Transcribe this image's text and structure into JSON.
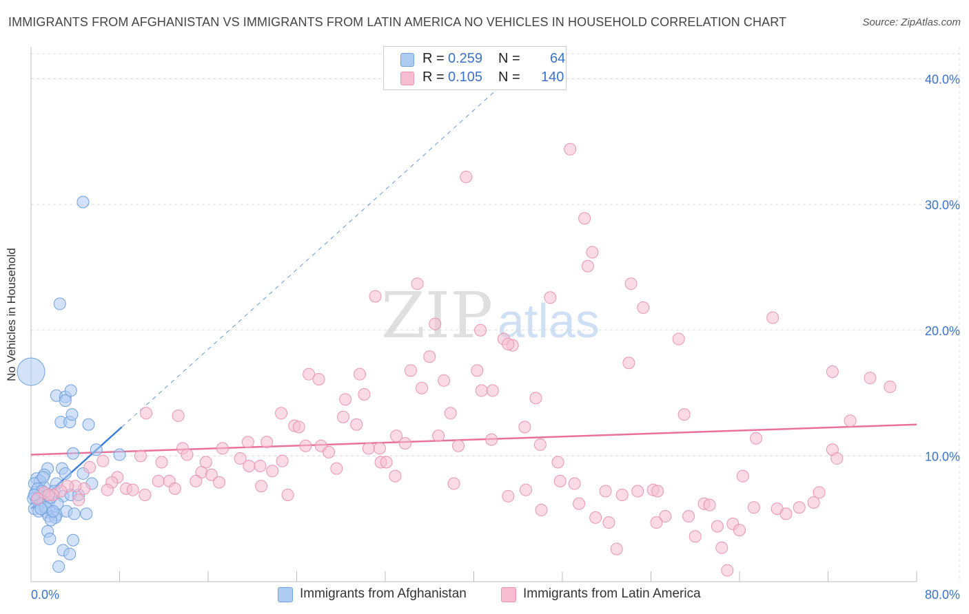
{
  "header": {
    "title": "IMMIGRANTS FROM AFGHANISTAN VS IMMIGRANTS FROM LATIN AMERICA NO VEHICLES IN HOUSEHOLD CORRELATION CHART",
    "source": "Source: ZipAtlas.com"
  },
  "legend_stats": {
    "r_label": "R =",
    "n_label": "N =",
    "rows": [
      {
        "r": "0.259",
        "n": "64"
      },
      {
        "r": "0.105",
        "n": "140"
      }
    ]
  },
  "watermark": {
    "zip": "ZIP",
    "atlas": "atlas"
  },
  "colors": {
    "blue_fill": "#aecbf2",
    "blue_stroke": "#6e9fde",
    "blue_line": "#3b7dd8",
    "pink_fill": "#f6bdd0",
    "pink_stroke": "#e993b1",
    "pink_line": "#e8709a",
    "tick_text": "#3a72c7",
    "grid": "#d9d9d9"
  },
  "chart_data": {
    "type": "scatter",
    "title": "IMMIGRANTS FROM AFGHANISTAN VS IMMIGRANTS FROM LATIN AMERICA NO VEHICLES IN HOUSEHOLD CORRELATION CHART",
    "xlabel": "",
    "ylabel": "No Vehicles in Household",
    "xlim": [
      0,
      80
    ],
    "ylim": [
      0,
      42
    ],
    "x_tick_labels": [
      "0.0%",
      "80.0%"
    ],
    "y_ticks": [
      10,
      20,
      30,
      40
    ],
    "y_tick_labels": [
      "10.0%",
      "20.0%",
      "30.0%",
      "40.0%"
    ],
    "grid": true,
    "legend_position": "top-center",
    "series": [
      {
        "name": "Immigrants from Afghanistan",
        "color": "blue",
        "trend": {
          "x": [
            0,
            8.2
          ],
          "y": [
            5.8,
            12.3
          ],
          "extended_to_x": 43.5
        },
        "points": [
          {
            "x": 0.0,
            "y": 16.7,
            "large": true
          },
          {
            "x": 4.7,
            "y": 30.2
          },
          {
            "x": 2.6,
            "y": 22.1
          },
          {
            "x": 2.3,
            "y": 14.8
          },
          {
            "x": 3.1,
            "y": 14.7
          },
          {
            "x": 3.6,
            "y": 15.2
          },
          {
            "x": 3.1,
            "y": 14.4
          },
          {
            "x": 2.7,
            "y": 12.7
          },
          {
            "x": 3.5,
            "y": 12.7
          },
          {
            "x": 3.7,
            "y": 13.3
          },
          {
            "x": 5.2,
            "y": 12.5
          },
          {
            "x": 3.8,
            "y": 10.2
          },
          {
            "x": 5.9,
            "y": 10.5
          },
          {
            "x": 8.0,
            "y": 10.1
          },
          {
            "x": 1.5,
            "y": 9.0
          },
          {
            "x": 2.8,
            "y": 9.0
          },
          {
            "x": 1.2,
            "y": 8.5
          },
          {
            "x": 3.1,
            "y": 8.6
          },
          {
            "x": 4.7,
            "y": 8.6
          },
          {
            "x": 0.5,
            "y": 8.2
          },
          {
            "x": 0.8,
            "y": 8.0
          },
          {
            "x": 0.3,
            "y": 7.8
          },
          {
            "x": 2.3,
            "y": 7.8
          },
          {
            "x": 5.5,
            "y": 7.8
          },
          {
            "x": 1.2,
            "y": 7.5
          },
          {
            "x": 2.1,
            "y": 7.2
          },
          {
            "x": 0.4,
            "y": 7.1
          },
          {
            "x": 1.0,
            "y": 7.0
          },
          {
            "x": 0.7,
            "y": 6.8
          },
          {
            "x": 1.3,
            "y": 6.8
          },
          {
            "x": 2.9,
            "y": 6.8
          },
          {
            "x": 0.2,
            "y": 6.6
          },
          {
            "x": 0.5,
            "y": 6.5
          },
          {
            "x": 1.1,
            "y": 6.4
          },
          {
            "x": 1.6,
            "y": 6.3
          },
          {
            "x": 0.8,
            "y": 6.2
          },
          {
            "x": 2.4,
            "y": 6.2
          },
          {
            "x": 3.6,
            "y": 6.9
          },
          {
            "x": 4.3,
            "y": 6.9
          },
          {
            "x": 0.3,
            "y": 5.8
          },
          {
            "x": 0.7,
            "y": 5.6
          },
          {
            "x": 1.4,
            "y": 5.5
          },
          {
            "x": 1.9,
            "y": 5.5
          },
          {
            "x": 2.3,
            "y": 5.3
          },
          {
            "x": 1.6,
            "y": 5.2
          },
          {
            "x": 2.2,
            "y": 5.1
          },
          {
            "x": 3.2,
            "y": 5.6
          },
          {
            "x": 3.9,
            "y": 5.4
          },
          {
            "x": 5.0,
            "y": 5.4
          },
          {
            "x": 1.8,
            "y": 4.9
          },
          {
            "x": 1.5,
            "y": 4.0
          },
          {
            "x": 1.7,
            "y": 3.4
          },
          {
            "x": 3.8,
            "y": 3.3
          },
          {
            "x": 2.9,
            "y": 2.5
          },
          {
            "x": 3.5,
            "y": 2.2
          },
          {
            "x": 2.5,
            "y": 1.2
          },
          {
            "x": 0.6,
            "y": 7.4
          },
          {
            "x": 1.0,
            "y": 7.2
          },
          {
            "x": 1.8,
            "y": 6.7
          },
          {
            "x": 0.3,
            "y": 6.9
          },
          {
            "x": 1.3,
            "y": 5.9
          },
          {
            "x": 2.0,
            "y": 5.6
          },
          {
            "x": 0.9,
            "y": 5.8
          },
          {
            "x": 1.1,
            "y": 8.3
          }
        ]
      },
      {
        "name": "Immigrants from Latin America",
        "color": "pink",
        "trend": {
          "x": [
            0,
            80
          ],
          "y": [
            10.1,
            12.5
          ]
        },
        "points": [
          {
            "x": 48.7,
            "y": 34.4
          },
          {
            "x": 39.3,
            "y": 32.2
          },
          {
            "x": 50.0,
            "y": 28.9
          },
          {
            "x": 50.7,
            "y": 26.2
          },
          {
            "x": 50.3,
            "y": 25.1
          },
          {
            "x": 34.9,
            "y": 23.7
          },
          {
            "x": 54.2,
            "y": 23.7
          },
          {
            "x": 31.1,
            "y": 22.7
          },
          {
            "x": 46.9,
            "y": 22.6
          },
          {
            "x": 55.3,
            "y": 21.8
          },
          {
            "x": 67.0,
            "y": 21.0
          },
          {
            "x": 36.5,
            "y": 20.5
          },
          {
            "x": 40.6,
            "y": 20.0
          },
          {
            "x": 42.7,
            "y": 19.3
          },
          {
            "x": 43.5,
            "y": 18.8
          },
          {
            "x": 43.1,
            "y": 18.9
          },
          {
            "x": 58.5,
            "y": 19.3
          },
          {
            "x": 36.0,
            "y": 17.9
          },
          {
            "x": 54.0,
            "y": 17.4
          },
          {
            "x": 34.3,
            "y": 16.8
          },
          {
            "x": 40.3,
            "y": 16.8
          },
          {
            "x": 25.1,
            "y": 16.5
          },
          {
            "x": 29.7,
            "y": 16.5
          },
          {
            "x": 72.4,
            "y": 16.7
          },
          {
            "x": 75.8,
            "y": 16.2
          },
          {
            "x": 77.6,
            "y": 15.5
          },
          {
            "x": 26.0,
            "y": 16.1
          },
          {
            "x": 37.3,
            "y": 16.0
          },
          {
            "x": 35.3,
            "y": 15.4
          },
          {
            "x": 40.7,
            "y": 15.2
          },
          {
            "x": 41.7,
            "y": 15.2
          },
          {
            "x": 30.1,
            "y": 14.9
          },
          {
            "x": 28.4,
            "y": 14.5
          },
          {
            "x": 45.6,
            "y": 14.6
          },
          {
            "x": 10.4,
            "y": 13.4
          },
          {
            "x": 13.3,
            "y": 13.2
          },
          {
            "x": 22.6,
            "y": 13.4
          },
          {
            "x": 37.9,
            "y": 13.4
          },
          {
            "x": 59.0,
            "y": 13.3
          },
          {
            "x": 74.0,
            "y": 12.8
          },
          {
            "x": 28.2,
            "y": 13.1
          },
          {
            "x": 29.4,
            "y": 12.5
          },
          {
            "x": 23.8,
            "y": 12.4
          },
          {
            "x": 24.2,
            "y": 12.3
          },
          {
            "x": 44.6,
            "y": 12.3
          },
          {
            "x": 33.0,
            "y": 11.6
          },
          {
            "x": 36.8,
            "y": 11.6
          },
          {
            "x": 41.6,
            "y": 11.3
          },
          {
            "x": 65.5,
            "y": 11.4
          },
          {
            "x": 21.3,
            "y": 11.1
          },
          {
            "x": 19.6,
            "y": 11.1
          },
          {
            "x": 33.8,
            "y": 11.0
          },
          {
            "x": 24.8,
            "y": 10.8
          },
          {
            "x": 26.2,
            "y": 10.8
          },
          {
            "x": 30.5,
            "y": 10.6
          },
          {
            "x": 31.5,
            "y": 10.6
          },
          {
            "x": 17.3,
            "y": 10.6
          },
          {
            "x": 13.7,
            "y": 10.6
          },
          {
            "x": 46.0,
            "y": 10.9
          },
          {
            "x": 38.6,
            "y": 10.8
          },
          {
            "x": 26.9,
            "y": 10.3
          },
          {
            "x": 14.1,
            "y": 10.1
          },
          {
            "x": 72.4,
            "y": 10.5
          },
          {
            "x": 9.9,
            "y": 10.0
          },
          {
            "x": 18.9,
            "y": 9.8
          },
          {
            "x": 22.7,
            "y": 9.6
          },
          {
            "x": 11.8,
            "y": 9.5
          },
          {
            "x": 15.8,
            "y": 9.5
          },
          {
            "x": 31.6,
            "y": 9.5
          },
          {
            "x": 32.1,
            "y": 9.5
          },
          {
            "x": 47.6,
            "y": 9.5
          },
          {
            "x": 6.5,
            "y": 9.6
          },
          {
            "x": 5.3,
            "y": 9.1
          },
          {
            "x": 19.7,
            "y": 9.2
          },
          {
            "x": 20.7,
            "y": 9.2
          },
          {
            "x": 72.8,
            "y": 9.8
          },
          {
            "x": 27.6,
            "y": 9.0
          },
          {
            "x": 21.8,
            "y": 8.8
          },
          {
            "x": 15.4,
            "y": 8.7
          },
          {
            "x": 16.3,
            "y": 8.5
          },
          {
            "x": 7.8,
            "y": 8.3
          },
          {
            "x": 32.9,
            "y": 8.4
          },
          {
            "x": 64.3,
            "y": 8.4
          },
          {
            "x": 11.5,
            "y": 8.0
          },
          {
            "x": 12.5,
            "y": 8.0
          },
          {
            "x": 14.9,
            "y": 8.0
          },
          {
            "x": 7.3,
            "y": 7.9
          },
          {
            "x": 17.0,
            "y": 7.9
          },
          {
            "x": 47.8,
            "y": 8.0
          },
          {
            "x": 49.1,
            "y": 7.8
          },
          {
            "x": 38.2,
            "y": 7.8
          },
          {
            "x": 20.8,
            "y": 7.6
          },
          {
            "x": 13.0,
            "y": 7.4
          },
          {
            "x": 6.9,
            "y": 7.3
          },
          {
            "x": 8.6,
            "y": 7.4
          },
          {
            "x": 9.2,
            "y": 7.3
          },
          {
            "x": 4.8,
            "y": 7.4
          },
          {
            "x": 4.0,
            "y": 7.6
          },
          {
            "x": 3.3,
            "y": 7.6
          },
          {
            "x": 2.7,
            "y": 7.2
          },
          {
            "x": 44.7,
            "y": 7.3
          },
          {
            "x": 51.9,
            "y": 7.2
          },
          {
            "x": 54.8,
            "y": 7.2
          },
          {
            "x": 56.2,
            "y": 7.3
          },
          {
            "x": 56.6,
            "y": 7.2
          },
          {
            "x": 71.2,
            "y": 7.1
          },
          {
            "x": 43.1,
            "y": 6.8
          },
          {
            "x": 53.4,
            "y": 6.9
          },
          {
            "x": 10.3,
            "y": 6.9
          },
          {
            "x": 23.2,
            "y": 6.9
          },
          {
            "x": 2.0,
            "y": 6.9
          },
          {
            "x": 4.3,
            "y": 6.5
          },
          {
            "x": 49.5,
            "y": 6.2
          },
          {
            "x": 60.8,
            "y": 6.2
          },
          {
            "x": 61.3,
            "y": 6.1
          },
          {
            "x": 70.7,
            "y": 6.3
          },
          {
            "x": 69.4,
            "y": 5.9
          },
          {
            "x": 65.3,
            "y": 5.9
          },
          {
            "x": 67.4,
            "y": 5.8
          },
          {
            "x": 46.1,
            "y": 5.7
          },
          {
            "x": 68.2,
            "y": 5.4
          },
          {
            "x": 57.3,
            "y": 5.2
          },
          {
            "x": 59.4,
            "y": 5.2
          },
          {
            "x": 51.0,
            "y": 5.1
          },
          {
            "x": 52.2,
            "y": 4.7
          },
          {
            "x": 56.5,
            "y": 4.7
          },
          {
            "x": 63.4,
            "y": 4.6
          },
          {
            "x": 62.0,
            "y": 4.4
          },
          {
            "x": 64.0,
            "y": 4.1
          },
          {
            "x": 60.0,
            "y": 3.6
          },
          {
            "x": 52.9,
            "y": 2.6
          },
          {
            "x": 62.4,
            "y": 2.7
          },
          {
            "x": 62.9,
            "y": 0.9
          },
          {
            "x": 1.2,
            "y": 7.1
          },
          {
            "x": 0.6,
            "y": 6.6
          },
          {
            "x": 1.6,
            "y": 6.9
          }
        ]
      }
    ]
  }
}
